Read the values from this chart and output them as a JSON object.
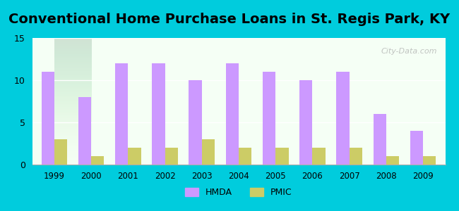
{
  "title": "Conventional Home Purchase Loans in St. Regis Park, KY",
  "years": [
    1999,
    2000,
    2001,
    2002,
    2003,
    2004,
    2005,
    2006,
    2007,
    2008,
    2009
  ],
  "hmda": [
    11,
    8,
    12,
    12,
    10,
    12,
    11,
    10,
    11,
    6,
    4
  ],
  "pmic": [
    3,
    1,
    2,
    2,
    3,
    2,
    2,
    2,
    2,
    1,
    1
  ],
  "hmda_color": "#cc99ff",
  "pmic_color": "#cccc66",
  "background_outer": "#00ccdd",
  "background_inner_top": "#f0fff0",
  "background_inner_bottom": "#e8ffe8",
  "ylim": [
    0,
    15
  ],
  "yticks": [
    0,
    5,
    10,
    15
  ],
  "bar_width": 0.35,
  "title_fontsize": 14,
  "watermark": "City-Data.com"
}
